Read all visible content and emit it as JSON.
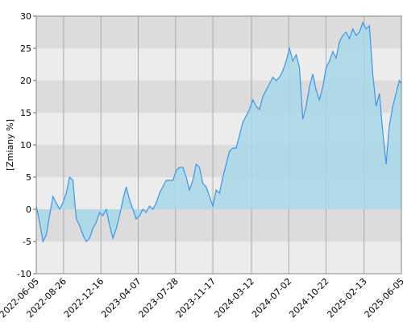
{
  "chart_data": {
    "type": "area",
    "ylabel": "[Zmiany %]",
    "xlim": [
      "2022-06-05",
      "2025-06-05"
    ],
    "xticks": [
      "2022-06-05",
      "2022-08-26",
      "2022-12-16",
      "2023-04-07",
      "2023-07-28",
      "2023-11-17",
      "2024-03-12",
      "2024-07-02",
      "2024-10-22",
      "2025-02-13",
      "2025-06-05"
    ],
    "ylim": [
      -10,
      30
    ],
    "yticks": [
      -10,
      -5,
      0,
      5,
      10,
      15,
      20,
      25,
      30
    ],
    "grid": true,
    "color": "#3c96e6",
    "fill_color": "#a8d8ea",
    "x": [
      "2022-06-05",
      "2022-06-15",
      "2022-06-25",
      "2022-07-05",
      "2022-07-15",
      "2022-07-25",
      "2022-08-04",
      "2022-08-14",
      "2022-08-24",
      "2022-09-03",
      "2022-09-13",
      "2022-09-23",
      "2022-10-03",
      "2022-10-13",
      "2022-10-23",
      "2022-11-02",
      "2022-11-12",
      "2022-11-22",
      "2022-12-02",
      "2022-12-12",
      "2022-12-22",
      "2023-01-01",
      "2023-01-11",
      "2023-01-21",
      "2023-01-31",
      "2023-02-10",
      "2023-02-20",
      "2023-03-02",
      "2023-03-12",
      "2023-03-22",
      "2023-04-01",
      "2023-04-11",
      "2023-04-21",
      "2023-05-01",
      "2023-05-11",
      "2023-05-21",
      "2023-05-31",
      "2023-06-10",
      "2023-06-20",
      "2023-06-30",
      "2023-07-10",
      "2023-07-20",
      "2023-07-30",
      "2023-08-09",
      "2023-08-19",
      "2023-08-29",
      "2023-09-08",
      "2023-09-18",
      "2023-09-28",
      "2023-10-08",
      "2023-10-18",
      "2023-10-28",
      "2023-11-07",
      "2023-11-17",
      "2023-11-27",
      "2023-12-07",
      "2023-12-17",
      "2023-12-27",
      "2024-01-06",
      "2024-01-16",
      "2024-01-26",
      "2024-02-05",
      "2024-02-15",
      "2024-02-25",
      "2024-03-06",
      "2024-03-16",
      "2024-03-26",
      "2024-04-05",
      "2024-04-15",
      "2024-04-25",
      "2024-05-05",
      "2024-05-15",
      "2024-05-25",
      "2024-06-04",
      "2024-06-14",
      "2024-06-24",
      "2024-07-04",
      "2024-07-14",
      "2024-07-24",
      "2024-08-03",
      "2024-08-13",
      "2024-08-23",
      "2024-09-02",
      "2024-09-12",
      "2024-09-22",
      "2024-10-02",
      "2024-10-12",
      "2024-10-22",
      "2024-11-01",
      "2024-11-11",
      "2024-11-21",
      "2024-12-01",
      "2024-12-11",
      "2024-12-21",
      "2024-12-31",
      "2025-01-10",
      "2025-01-20",
      "2025-01-30",
      "2025-02-09",
      "2025-02-19",
      "2025-03-01",
      "2025-03-11",
      "2025-03-21",
      "2025-03-31",
      "2025-04-10",
      "2025-04-20",
      "2025-04-30",
      "2025-05-10",
      "2025-05-20",
      "2025-05-30",
      "2025-06-05"
    ],
    "values": [
      0.5,
      -2,
      -5,
      -4,
      -1,
      2,
      1,
      0,
      1,
      2.5,
      5,
      4.5,
      -1.5,
      -2.5,
      -4,
      -5,
      -4.5,
      -3,
      -2,
      -0.5,
      -1,
      0,
      -2.5,
      -4.5,
      -3,
      -1,
      1.5,
      3.5,
      1.5,
      0,
      -1.5,
      -1,
      0,
      -0.5,
      0.5,
      0,
      1,
      2.5,
      3.5,
      4.5,
      4.5,
      4.5,
      6,
      6.5,
      6.5,
      5,
      3,
      4.5,
      7,
      6.5,
      4,
      3.5,
      2,
      0.5,
      3,
      2.5,
      5,
      7,
      9,
      9.5,
      9.5,
      11.5,
      13.5,
      14.5,
      15.5,
      17,
      16,
      15.5,
      17.5,
      18.5,
      19.5,
      20.5,
      20,
      20.5,
      21.5,
      23,
      25,
      23,
      24,
      22,
      14,
      16,
      19,
      21,
      18.5,
      17,
      19,
      22,
      23,
      24.5,
      23.5,
      26,
      27,
      27.5,
      26.5,
      28,
      27,
      27.5,
      29,
      28,
      28.5,
      21,
      16,
      18,
      12,
      7,
      13,
      16,
      18,
      20,
      19.5
    ]
  }
}
